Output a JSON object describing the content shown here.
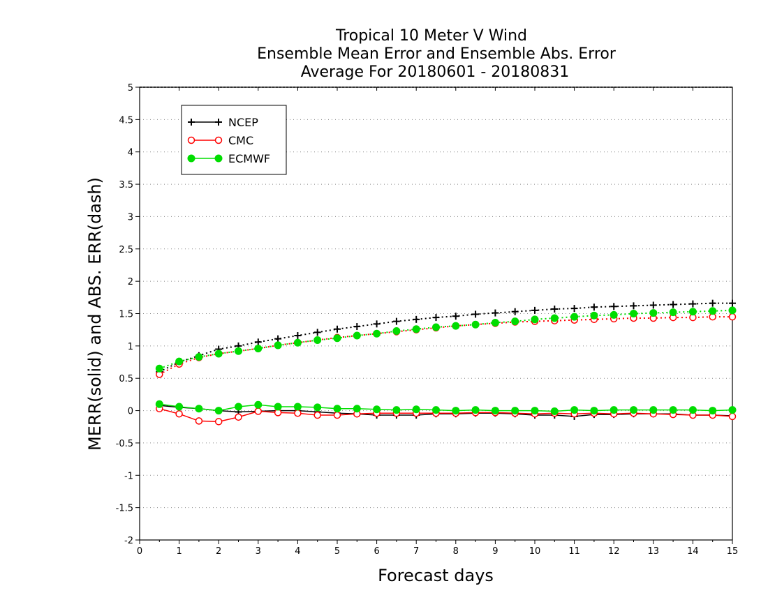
{
  "chart_data": {
    "type": "line",
    "title": [
      "Tropical 10 Meter V Wind",
      "Ensemble Mean Error and Ensemble Abs. Error",
      "Average For 20180601 - 20180831"
    ],
    "xlabel": "Forecast days",
    "ylabel": "MERR(solid) and ABS. ERR(dash)",
    "xlim": [
      0,
      15
    ],
    "ylim": [
      -2,
      5
    ],
    "xticks": [
      0,
      1,
      2,
      3,
      4,
      5,
      6,
      7,
      8,
      9,
      10,
      11,
      12,
      13,
      14,
      15
    ],
    "yticks": [
      -2,
      -1.5,
      -1,
      -0.5,
      0,
      0.5,
      1,
      1.5,
      2,
      2.5,
      3,
      3.5,
      4,
      4.5,
      5
    ],
    "ytick_labels": [
      "-2",
      "-1.5",
      "-1",
      "-0.5",
      "0",
      "0.5",
      "1",
      "1.5",
      "2",
      "2.5",
      "3",
      "3.5",
      "4",
      "4.5",
      "5"
    ],
    "grid": "horizontal dotted",
    "legend": "top-left",
    "x": [
      0.5,
      1,
      1.5,
      2,
      2.5,
      3,
      3.5,
      4,
      4.5,
      5,
      5.5,
      6,
      6.5,
      7,
      7.5,
      8,
      8.5,
      9,
      9.5,
      10,
      10.5,
      11,
      11.5,
      12,
      12.5,
      13,
      13.5,
      14,
      14.5,
      15
    ],
    "series": [
      {
        "name": "NCEP",
        "color": "#000000",
        "marker": "plus",
        "merr": [
          0.08,
          0.05,
          0.03,
          0.0,
          -0.02,
          -0.01,
          0.0,
          0.0,
          -0.02,
          -0.04,
          -0.05,
          -0.07,
          -0.07,
          -0.07,
          -0.05,
          -0.05,
          -0.04,
          -0.04,
          -0.05,
          -0.07,
          -0.07,
          -0.09,
          -0.06,
          -0.06,
          -0.05,
          -0.05,
          -0.05,
          -0.07,
          -0.07,
          -0.08
        ],
        "abs_err": [
          0.6,
          0.75,
          0.85,
          0.95,
          1.0,
          1.06,
          1.11,
          1.16,
          1.21,
          1.26,
          1.3,
          1.34,
          1.38,
          1.41,
          1.44,
          1.46,
          1.49,
          1.51,
          1.53,
          1.55,
          1.57,
          1.58,
          1.6,
          1.61,
          1.62,
          1.63,
          1.64,
          1.65,
          1.66,
          1.66
        ]
      },
      {
        "name": "CMC",
        "color": "#ff0000",
        "marker": "open-circle",
        "merr": [
          0.03,
          -0.05,
          -0.16,
          -0.17,
          -0.1,
          -0.01,
          -0.03,
          -0.04,
          -0.07,
          -0.07,
          -0.05,
          -0.04,
          -0.04,
          -0.04,
          -0.04,
          -0.04,
          -0.03,
          -0.03,
          -0.04,
          -0.05,
          -0.04,
          -0.05,
          -0.04,
          -0.05,
          -0.04,
          -0.05,
          -0.06,
          -0.07,
          -0.07,
          -0.09
        ],
        "abs_err": [
          0.56,
          0.72,
          0.82,
          0.88,
          0.92,
          0.96,
          1.01,
          1.05,
          1.09,
          1.13,
          1.16,
          1.19,
          1.22,
          1.25,
          1.28,
          1.31,
          1.33,
          1.35,
          1.37,
          1.38,
          1.39,
          1.4,
          1.41,
          1.42,
          1.43,
          1.43,
          1.44,
          1.44,
          1.45,
          1.45
        ]
      },
      {
        "name": "ECMWF",
        "color": "#00dd00",
        "marker": "filled-circle",
        "merr": [
          0.1,
          0.06,
          0.03,
          0.0,
          0.06,
          0.09,
          0.06,
          0.06,
          0.05,
          0.03,
          0.03,
          0.02,
          0.01,
          0.02,
          0.01,
          0.0,
          0.01,
          0.0,
          0.0,
          0.0,
          -0.01,
          0.01,
          0.0,
          0.01,
          0.01,
          0.01,
          0.01,
          0.01,
          0.0,
          0.01
        ],
        "abs_err": [
          0.65,
          0.76,
          0.83,
          0.88,
          0.92,
          0.96,
          1.01,
          1.05,
          1.09,
          1.12,
          1.16,
          1.19,
          1.23,
          1.26,
          1.29,
          1.31,
          1.33,
          1.36,
          1.38,
          1.41,
          1.43,
          1.45,
          1.47,
          1.48,
          1.5,
          1.51,
          1.52,
          1.53,
          1.54,
          1.55
        ]
      }
    ]
  }
}
